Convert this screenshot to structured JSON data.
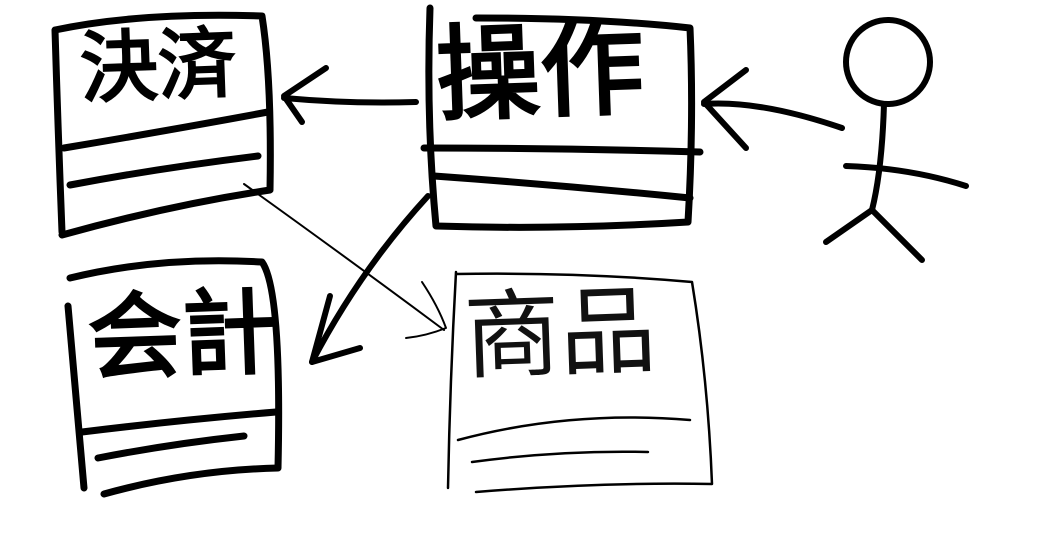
{
  "classes": [
    {
      "id": "settlement",
      "name": "決済"
    },
    {
      "id": "operation",
      "name": "操作"
    },
    {
      "id": "accounting",
      "name": "会計"
    },
    {
      "id": "product",
      "name": "商品"
    }
  ],
  "colors": {
    "stroke": "#000000",
    "background": "#ffffff"
  }
}
